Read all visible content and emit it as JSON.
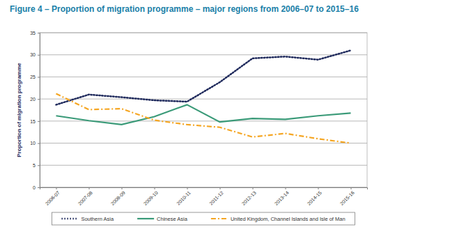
{
  "chart_data": {
    "type": "line",
    "title": "Figure 4 – Proportion of migration programme – major regions from 2006–07 to 2015–16",
    "y_label": "Proportion of migration programme",
    "categories": [
      "2006-07",
      "2007-08",
      "2008-09",
      "2009-10",
      "2010-11",
      "2011-12",
      "2012-13",
      "2013-14",
      "2014-15",
      "2015-16"
    ],
    "series": [
      {
        "name": "Southern Asia",
        "color": "#1f2a5c",
        "line_style": "dotted",
        "values": [
          18.7,
          21.0,
          20.4,
          19.7,
          19.4,
          23.8,
          29.2,
          29.6,
          28.9,
          31.0
        ]
      },
      {
        "name": "Chinese Asia",
        "color": "#3a9a78",
        "line_style": "solid",
        "values": [
          16.2,
          15.1,
          14.2,
          16.0,
          18.7,
          14.8,
          15.6,
          15.4,
          16.2,
          16.8
        ]
      },
      {
        "name": "United Kingdom, Channel Islands and Isle of Man",
        "color": "#f5a623",
        "line_style": "dashdot",
        "values": [
          21.2,
          17.6,
          17.8,
          15.2,
          14.2,
          13.6,
          11.4,
          12.2,
          11.0,
          10.0
        ]
      }
    ],
    "ylim": [
      0,
      35
    ],
    "yticks": [
      0,
      5,
      10,
      15,
      20,
      25,
      30,
      35
    ],
    "grid": true,
    "legend": "bottom"
  }
}
